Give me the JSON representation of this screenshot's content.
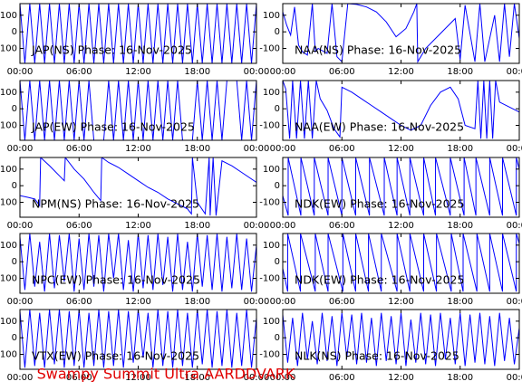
{
  "caption": "Swampy Summit Ultra AARDDVARK",
  "chart_data": [
    {
      "type": "line",
      "title": "JAP(NS) Phase: 16-Nov-2025",
      "color": "#0000ff",
      "x": [
        0,
        0.5,
        1,
        1.5,
        2,
        2.5,
        3,
        3.5,
        4,
        4.5,
        5,
        5.5,
        6,
        6.5,
        7,
        7.5,
        8,
        8.5,
        9,
        9.5,
        10,
        10.5,
        11,
        11.5,
        12,
        12.5,
        13,
        13.5,
        14,
        14.5,
        15,
        15.5,
        16,
        16.5,
        17,
        17.5,
        18,
        18.5,
        19,
        19.5,
        20,
        20.5,
        21,
        21.5,
        22,
        22.5,
        23,
        23.5,
        24
      ],
      "values": [
        170,
        -190,
        170,
        -190,
        170,
        -190,
        170,
        -190,
        170,
        -190,
        170,
        -190,
        170,
        -190,
        170,
        -190,
        170,
        -190,
        170,
        -190,
        170,
        -190,
        170,
        -190,
        170,
        -190,
        170,
        -190,
        170,
        -190,
        170,
        -190,
        170,
        -190,
        170,
        -190,
        170,
        -190,
        170,
        -190,
        170,
        -190,
        170,
        -190,
        170,
        -190,
        170,
        -190,
        170
      ],
      "xlim": [
        0,
        24
      ],
      "ylim": [
        -190,
        170
      ],
      "xticks": [
        {
          "value": 0,
          "label": "00:00"
        },
        {
          "value": 6,
          "label": "06:00"
        },
        {
          "value": 12,
          "label": "12:00"
        },
        {
          "value": 18,
          "label": "18:00"
        },
        {
          "value": 24,
          "label": "00:00"
        }
      ],
      "yticks": [
        -100,
        0,
        100
      ]
    },
    {
      "type": "line",
      "title": "NAA(NS) Phase: 16-Nov-2025",
      "color": "#0000ff",
      "x": [
        0,
        0.4,
        0.8,
        1.2,
        1.6,
        2.0,
        2.5,
        3.0,
        3.3,
        3.6,
        4.5,
        5.0,
        5.5,
        6.0,
        6.6,
        7.5,
        8.5,
        9.5,
        10.5,
        11.5,
        12.5,
        13.3,
        13.6,
        13.7,
        14.5,
        15.5,
        16.5,
        17.5,
        18.0,
        18.5,
        19.5,
        20.0,
        20.5,
        21.5,
        22.0,
        22.5,
        23,
        23.5,
        24
      ],
      "values": [
        120,
        40,
        -20,
        150,
        -80,
        -120,
        -140,
        170,
        -120,
        -100,
        -130,
        170,
        -150,
        -180,
        170,
        165,
        150,
        120,
        60,
        -30,
        20,
        120,
        170,
        -180,
        -100,
        -40,
        20,
        80,
        -170,
        160,
        -180,
        170,
        -180,
        100,
        -180,
        170,
        -150,
        170,
        -40
      ],
      "xlim": [
        0,
        24
      ],
      "ylim": [
        -190,
        170
      ],
      "xticks": [
        {
          "value": 0,
          "label": "00:00"
        },
        {
          "value": 6,
          "label": "06:00"
        },
        {
          "value": 12,
          "label": "12:00"
        },
        {
          "value": 18,
          "label": "18:00"
        },
        {
          "value": 24,
          "label": "00:00"
        }
      ],
      "yticks": [
        -100,
        0,
        100
      ]
    },
    {
      "type": "line",
      "title": "JAP(EW) Phase: 16-Nov-2025",
      "color": "#0000ff",
      "x": [
        0,
        0.5,
        1,
        1.5,
        2,
        2.5,
        3,
        3.5,
        4,
        4.5,
        5,
        5.5,
        6,
        6.5,
        7,
        7.5,
        8,
        8.5,
        9,
        9.5,
        10,
        10.5,
        11,
        11.5,
        12,
        12.5,
        13,
        13.5,
        14,
        14.5,
        15,
        15.5,
        16,
        16.5,
        17,
        17.5,
        18,
        18.5,
        19,
        19.5,
        20,
        20.5,
        21,
        21.5,
        22,
        22.5,
        23,
        23.5,
        24
      ],
      "values": [
        170,
        -190,
        170,
        -190,
        170,
        -190,
        170,
        -190,
        170,
        -190,
        170,
        -190,
        170,
        -190,
        170,
        -190,
        null,
        -190,
        170,
        -190,
        170,
        -190,
        170,
        -190,
        170,
        -190,
        170,
        -190,
        170,
        -190,
        170,
        -190,
        170,
        -190,
        null,
        -190,
        170,
        -190,
        170,
        -190,
        170,
        -190,
        170,
        null,
        170,
        -190,
        170,
        -190,
        170
      ],
      "xlim": [
        0,
        24
      ],
      "ylim": [
        -190,
        170
      ],
      "xticks": [
        {
          "value": 0,
          "label": "00:00"
        },
        {
          "value": 6,
          "label": "06:00"
        },
        {
          "value": 12,
          "label": "12:00"
        },
        {
          "value": 18,
          "label": "18:00"
        },
        {
          "value": 24,
          "label": "00:00"
        }
      ],
      "yticks": [
        -100,
        0,
        100
      ]
    },
    {
      "type": "line",
      "title": "NAA(EW) Phase: 16-Nov-2025",
      "color": "#0000ff",
      "x": [
        0,
        0.3,
        0.7,
        1.0,
        1.4,
        1.8,
        2.2,
        2.6,
        3.0,
        3.4,
        3.8,
        4.5,
        5.2,
        5.8,
        6.0,
        7,
        8,
        9,
        10,
        11,
        12,
        13,
        14,
        15,
        16,
        17,
        17.8,
        18.5,
        19.5,
        19.8,
        20.1,
        20.4,
        20.7,
        21.0,
        21.3,
        21.6,
        22,
        23,
        24
      ],
      "values": [
        170,
        120,
        -180,
        170,
        -180,
        170,
        -180,
        170,
        -180,
        170,
        60,
        -10,
        -120,
        -170,
        130,
        100,
        60,
        20,
        -20,
        -60,
        -100,
        -130,
        -100,
        20,
        100,
        130,
        60,
        -100,
        -120,
        170,
        -180,
        170,
        -180,
        170,
        -180,
        170,
        40,
        10,
        -20
      ],
      "xlim": [
        0,
        24
      ],
      "ylim": [
        -190,
        170
      ],
      "xticks": [
        {
          "value": 0,
          "label": "00:00"
        },
        {
          "value": 6,
          "label": "06:00"
        },
        {
          "value": 12,
          "label": "12:00"
        },
        {
          "value": 18,
          "label": "18:00"
        },
        {
          "value": 24,
          "label": "00:00"
        }
      ],
      "yticks": [
        -100,
        0,
        100
      ]
    },
    {
      "type": "line",
      "title": "NPM(NS) Phase: 16-Nov-2025",
      "color": "#0000ff",
      "x": [
        0,
        0.8,
        1.5,
        2.0,
        2.1,
        3.0,
        4.0,
        4.5,
        4.6,
        5.5,
        6.5,
        7.5,
        8.2,
        8.3,
        9,
        10,
        11,
        12,
        13,
        14,
        15,
        16,
        17,
        17.4,
        17.5,
        18,
        18.8,
        19.2,
        19.3,
        19.6,
        19.9,
        20.5,
        21.5,
        22.5,
        24
      ],
      "values": [
        -60,
        -70,
        -80,
        -120,
        170,
        120,
        60,
        30,
        170,
        100,
        40,
        -40,
        -90,
        170,
        140,
        110,
        70,
        30,
        -10,
        -40,
        -80,
        -110,
        -140,
        -170,
        170,
        -100,
        -170,
        170,
        -180,
        170,
        -180,
        150,
        120,
        80,
        20
      ],
      "xlim": [
        0,
        24
      ],
      "ylim": [
        -190,
        170
      ],
      "xticks": [
        {
          "value": 0,
          "label": "00:00"
        },
        {
          "value": 6,
          "label": "06:00"
        },
        {
          "value": 12,
          "label": "12:00"
        },
        {
          "value": 18,
          "label": "18:00"
        },
        {
          "value": 24,
          "label": "00:00"
        }
      ],
      "yticks": [
        -100,
        0,
        100
      ]
    },
    {
      "type": "line",
      "title": "NDK(EW) Phase: 16-Nov-2025",
      "color": "#0000ff",
      "x": [
        0,
        0.55,
        0.55,
        1.84,
        1.84,
        3.2,
        3.2,
        4.6,
        4.6,
        6.0,
        6.0,
        7.4,
        7.4,
        8.8,
        8.8,
        10.3,
        10.3,
        11.6,
        11.6,
        12.9,
        12.9,
        14.3,
        14.3,
        15.5,
        15.5,
        17.0,
        17.0,
        18.4,
        18.4,
        19.6,
        19.6,
        21.0,
        21.0,
        22.3,
        22.3,
        23.7,
        23.7,
        24
      ],
      "values": [
        -60,
        -180,
        170,
        -180,
        170,
        -180,
        170,
        -180,
        170,
        -180,
        170,
        -180,
        170,
        -180,
        170,
        -180,
        170,
        -180,
        170,
        -180,
        170,
        -180,
        170,
        -180,
        170,
        -180,
        170,
        -180,
        170,
        -180,
        170,
        -180,
        170,
        -180,
        170,
        -180,
        170,
        100
      ],
      "xlim": [
        0,
        24
      ],
      "ylim": [
        -190,
        170
      ],
      "xticks": [
        {
          "value": 0,
          "label": "00:00"
        },
        {
          "value": 6,
          "label": "06:00"
        },
        {
          "value": 12,
          "label": "12:00"
        },
        {
          "value": 18,
          "label": "18:00"
        },
        {
          "value": 24,
          "label": "00:00"
        }
      ],
      "yticks": [
        -100,
        0,
        100
      ]
    },
    {
      "type": "line",
      "title": "NPC(EW) Phase: 16-Nov-2025",
      "color": "#0000ff",
      "x": [
        0,
        0.5,
        1,
        1.5,
        2,
        2.5,
        3,
        3.5,
        4,
        4.5,
        5,
        5.5,
        6,
        6.5,
        7,
        7.5,
        8,
        8.5,
        9,
        9.5,
        10,
        10.5,
        11,
        11.5,
        12,
        12.5,
        13,
        13.5,
        14,
        14.5,
        15,
        15.5,
        16,
        16.5,
        17,
        17.5,
        18,
        18.5,
        19,
        19.5,
        20,
        20.5,
        21,
        21.5,
        22,
        22.5,
        23,
        23.5,
        24
      ],
      "values": [
        150,
        -170,
        170,
        -150,
        120,
        -180,
        170,
        -160,
        160,
        -120,
        170,
        -180,
        140,
        -170,
        170,
        -150,
        160,
        -180,
        170,
        -100,
        170,
        -170,
        130,
        -180,
        170,
        -160,
        160,
        -170,
        170,
        -140,
        150,
        -180,
        170,
        -170,
        120,
        -180,
        170,
        -150,
        160,
        -170,
        170,
        -180,
        150,
        -160,
        170,
        -170,
        140,
        -180,
        100
      ],
      "xlim": [
        0,
        24
      ],
      "ylim": [
        -190,
        170
      ],
      "xticks": [
        {
          "value": 0,
          "label": "00:00"
        },
        {
          "value": 6,
          "label": "06:00"
        },
        {
          "value": 12,
          "label": "12:00"
        },
        {
          "value": 18,
          "label": "18:00"
        },
        {
          "value": 24,
          "label": "00:00"
        }
      ],
      "yticks": [
        -100,
        0,
        100
      ]
    },
    {
      "type": "line",
      "title": "NDK(EW) Phase: 16-Nov-2025",
      "color": "#0000ff",
      "x": [
        0,
        0.5,
        0.5,
        1.8,
        1.8,
        3.3,
        3.3,
        4.6,
        4.6,
        6.1,
        6.1,
        7.4,
        7.4,
        8.7,
        8.7,
        10,
        10,
        11.6,
        11.6,
        12.9,
        12.9,
        14.3,
        14.3,
        15.6,
        15.6,
        17.1,
        17.1,
        18.3,
        18.3,
        19.7,
        19.7,
        21,
        21,
        22.3,
        22.3,
        23.7,
        23.7,
        24
      ],
      "values": [
        -40,
        -180,
        170,
        -180,
        170,
        -180,
        170,
        -180,
        170,
        -180,
        170,
        -180,
        170,
        -180,
        170,
        -180,
        170,
        -180,
        170,
        -180,
        170,
        -180,
        170,
        -180,
        170,
        -180,
        170,
        -180,
        170,
        -180,
        170,
        -180,
        170,
        -180,
        170,
        -180,
        170,
        110
      ],
      "xlim": [
        0,
        24
      ],
      "ylim": [
        -190,
        170
      ],
      "xticks": [
        {
          "value": 0,
          "label": "00:00"
        },
        {
          "value": 6,
          "label": "06:00"
        },
        {
          "value": 12,
          "label": "12:00"
        },
        {
          "value": 18,
          "label": "18:00"
        },
        {
          "value": 24,
          "label": "00:00"
        }
      ],
      "yticks": [
        -100,
        0,
        100
      ]
    },
    {
      "type": "line",
      "title": "VTX(EW) Phase: 16-Nov-2025",
      "color": "#0000ff",
      "x": [
        0,
        0.5,
        1,
        1.5,
        2,
        2.5,
        3,
        3.5,
        4,
        4.5,
        5,
        5.5,
        6,
        6.5,
        7,
        7.5,
        8,
        8.5,
        9,
        9.5,
        10,
        10.5,
        11,
        11.5,
        12,
        12.5,
        13,
        13.5,
        14,
        14.5,
        15,
        15.5,
        16,
        16.5,
        17,
        17.5,
        18,
        18.5,
        19,
        19.5,
        20,
        20.5,
        21,
        21.5,
        22,
        22.5,
        23,
        23.5,
        24
      ],
      "values": [
        160,
        -180,
        170,
        -170,
        150,
        -180,
        170,
        -160,
        170,
        -180,
        160,
        -170,
        170,
        -180,
        150,
        -170,
        170,
        -180,
        160,
        -170,
        170,
        -180,
        160,
        -150,
        170,
        -120,
        150,
        -180,
        170,
        -170,
        160,
        -180,
        170,
        -170,
        150,
        -180,
        170,
        -160,
        170,
        -180,
        160,
        -170,
        170,
        -180,
        150,
        -170,
        170,
        -180,
        120
      ],
      "xlim": [
        0,
        24
      ],
      "ylim": [
        -190,
        170
      ],
      "xticks": [
        {
          "value": 0,
          "label": "00:00"
        },
        {
          "value": 6,
          "label": "06:00"
        },
        {
          "value": 12,
          "label": "12:00"
        },
        {
          "value": 18,
          "label": "18:00"
        },
        {
          "value": 24,
          "label": "00:00"
        }
      ],
      "yticks": [
        -100,
        0,
        100
      ]
    },
    {
      "type": "line",
      "title": "NLK(NS) Phase: 16-Nov-2025",
      "color": "#0000ff",
      "x": [
        0,
        0.5,
        1,
        1.5,
        2,
        2.5,
        3,
        3.5,
        4,
        4.5,
        5,
        5.5,
        6,
        6.5,
        7,
        7.5,
        8,
        8.5,
        9,
        9.5,
        10,
        10.5,
        11,
        11.5,
        12,
        12.5,
        13,
        13.5,
        14,
        14.5,
        15,
        15.5,
        16,
        16.5,
        17,
        17.5,
        18,
        18.5,
        19,
        19.5,
        20,
        20.5,
        21,
        21.5,
        22,
        22.5,
        23,
        23.5,
        24
      ],
      "values": [
        140,
        -150,
        120,
        -170,
        150,
        -130,
        100,
        -160,
        150,
        -140,
        130,
        -170,
        150,
        -120,
        140,
        -160,
        150,
        -150,
        120,
        -170,
        150,
        -140,
        130,
        -160,
        150,
        -170,
        110,
        -150,
        150,
        -160,
        140,
        -170,
        150,
        -130,
        120,
        -160,
        150,
        -170,
        140,
        -150,
        150,
        -160,
        130,
        -170,
        150,
        -140,
        120,
        -160,
        60
      ],
      "xlim": [
        0,
        24
      ],
      "ylim": [
        -190,
        170
      ],
      "xticks": [
        {
          "value": 0,
          "label": "00:00"
        },
        {
          "value": 6,
          "label": "06:00"
        },
        {
          "value": 12,
          "label": "12:00"
        },
        {
          "value": 18,
          "label": "18:00"
        },
        {
          "value": 24,
          "label": "00:00"
        }
      ],
      "yticks": [
        -100,
        0,
        100
      ]
    }
  ]
}
